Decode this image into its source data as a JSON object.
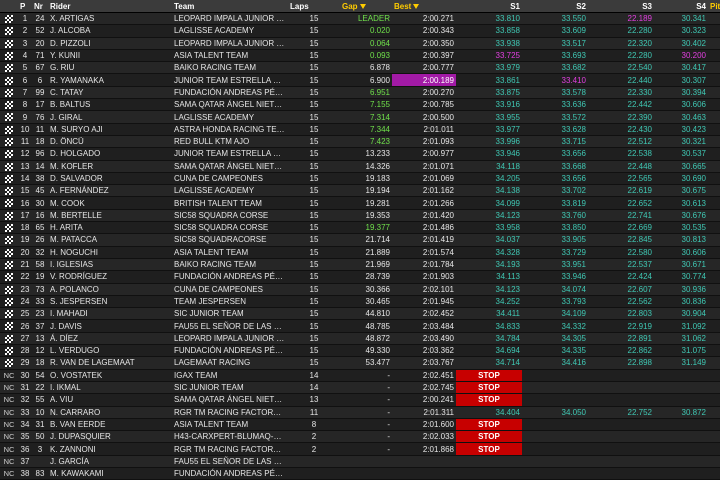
{
  "headers": {
    "flag": "",
    "pos": "P",
    "nr": "Nr",
    "rider": "Rider",
    "team": "Team",
    "laps": "Laps",
    "gap": "Gap",
    "best": "Best",
    "s1": "S1",
    "s2": "S2",
    "s3": "S3",
    "s4": "S4",
    "pits": "Pits"
  },
  "colors": {
    "sector_time": "#3fc8b4",
    "personal_best": "#6fe04a",
    "overall_best": "#e23fe0",
    "stop": "#c70000",
    "header_sorted": "#ffcc00"
  },
  "rows": [
    {
      "flag": "chequered",
      "pos": "1",
      "nr": "24",
      "rider": "X. ARTIGAS",
      "team": "LEOPARD IMPALA JUNIOR TEAM",
      "laps": "15",
      "gap": "LEADER",
      "best": "2:00.271",
      "s1": "33.810",
      "s2": "33.550",
      "s3": "22.189",
      "s4": "30.341",
      "pits": ""
    },
    {
      "flag": "chequered",
      "pos": "2",
      "nr": "52",
      "rider": "J. ALCOBA",
      "team": "LAGLISSE ACADEMY",
      "laps": "15",
      "gap": "0.020",
      "best": "2:00.343",
      "s1": "33.858",
      "s2": "33.609",
      "s3": "22.280",
      "s4": "30.323",
      "pits": ""
    },
    {
      "flag": "chequered",
      "pos": "3",
      "nr": "20",
      "rider": "D. PIZZOLI",
      "team": "LEOPARD IMPALA JUNIOR TEAM",
      "laps": "15",
      "gap": "0.064",
      "best": "2:00.350",
      "s1": "33.938",
      "s2": "33.517",
      "s3": "22.320",
      "s4": "30.402",
      "pits": ""
    },
    {
      "flag": "chequered",
      "pos": "4",
      "nr": "71",
      "rider": "Y. KUNII",
      "team": "ASIA TALENT TEAM",
      "laps": "15",
      "gap": "0.093",
      "best": "2:00.397",
      "s1": "33.725",
      "s2": "33.693",
      "s3": "22.280",
      "s4": "30.200",
      "pits": ""
    },
    {
      "flag": "chequered",
      "pos": "5",
      "nr": "67",
      "rider": "G. RIU",
      "team": "BAIKO RACING TEAM",
      "laps": "15",
      "gap": "6.878",
      "best": "2:00.777",
      "s1": "33.979",
      "s2": "33.682",
      "s3": "22.540",
      "s4": "30.417",
      "pits": ""
    },
    {
      "flag": "chequered",
      "pos": "6",
      "nr": "6",
      "rider": "R. YAMANAKA",
      "team": "JUNIOR TEAM ESTRELLA GALICIA 0,0",
      "laps": "15",
      "gap": "6.900",
      "best": "2:00.189",
      "s1": "33.861",
      "s2": "33.410",
      "s3": "22.440",
      "s4": "30.307",
      "pits": ""
    },
    {
      "flag": "chequered",
      "pos": "7",
      "nr": "99",
      "rider": "C. TATAY",
      "team": "FUNDACIÓN ANDREAS PÉREZ 77",
      "laps": "15",
      "gap": "6.951",
      "best": "2:00.270",
      "s1": "33.875",
      "s2": "33.578",
      "s3": "22.330",
      "s4": "30.394",
      "pits": ""
    },
    {
      "flag": "chequered",
      "pos": "8",
      "nr": "17",
      "rider": "B. BALTUS",
      "team": "SAMA QATAR ÁNGEL NIETO TEAM",
      "laps": "15",
      "gap": "7.155",
      "best": "2:00.785",
      "s1": "33.916",
      "s2": "33.636",
      "s3": "22.442",
      "s4": "30.606",
      "pits": ""
    },
    {
      "flag": "chequered",
      "pos": "9",
      "nr": "76",
      "rider": "J. GIRAL",
      "team": "LAGLISSE ACADEMY",
      "laps": "15",
      "gap": "7.314",
      "best": "2:00.500",
      "s1": "33.955",
      "s2": "33.572",
      "s3": "22.390",
      "s4": "30.463",
      "pits": ""
    },
    {
      "flag": "chequered",
      "pos": "10",
      "nr": "11",
      "rider": "M. SURYO AJI",
      "team": "ASTRA HONDA RACING TEAM",
      "laps": "15",
      "gap": "7.344",
      "best": "2:01.011",
      "s1": "33.977",
      "s2": "33.628",
      "s3": "22.430",
      "s4": "30.423",
      "pits": ""
    },
    {
      "flag": "chequered",
      "pos": "11",
      "nr": "18",
      "rider": "D. ÖNCÜ",
      "team": "RED BULL KTM AJO",
      "laps": "15",
      "gap": "7.423",
      "best": "2:01.093",
      "s1": "33.996",
      "s2": "33.715",
      "s3": "22.512",
      "s4": "30.321",
      "pits": ""
    },
    {
      "flag": "chequered",
      "pos": "12",
      "nr": "96",
      "rider": "D. HOLGADO",
      "team": "JUNIOR TEAM ESTRELLA GALICIA 0,0",
      "laps": "15",
      "gap": "13.233",
      "best": "2:00.977",
      "s1": "33.946",
      "s2": "33.656",
      "s3": "22.538",
      "s4": "30.537",
      "pits": ""
    },
    {
      "flag": "chequered",
      "pos": "13",
      "nr": "14",
      "rider": "M. KOFLER",
      "team": "SAMA QATAR ÁNGEL NIETO TEAM",
      "laps": "15",
      "gap": "14.326",
      "best": "2:01.071",
      "s1": "34.118",
      "s2": "33.668",
      "s3": "22.448",
      "s4": "30.665",
      "pits": ""
    },
    {
      "flag": "chequered",
      "pos": "14",
      "nr": "38",
      "rider": "D. SALVADOR",
      "team": "CUNA DE CAMPEONES",
      "laps": "15",
      "gap": "19.183",
      "best": "2:01.069",
      "s1": "34.205",
      "s2": "33.656",
      "s3": "22.565",
      "s4": "30.690",
      "pits": ""
    },
    {
      "flag": "chequered",
      "pos": "15",
      "nr": "45",
      "rider": "A. FERNÁNDEZ",
      "team": "LAGLISSE ACADEMY",
      "laps": "15",
      "gap": "19.194",
      "best": "2:01.162",
      "s1": "34.138",
      "s2": "33.702",
      "s3": "22.619",
      "s4": "30.675",
      "pits": ""
    },
    {
      "flag": "chequered",
      "pos": "16",
      "nr": "30",
      "rider": "M. COOK",
      "team": "BRITISH TALENT TEAM",
      "laps": "15",
      "gap": "19.281",
      "best": "2:01.266",
      "s1": "34.099",
      "s2": "33.819",
      "s3": "22.652",
      "s4": "30.613",
      "pits": ""
    },
    {
      "flag": "chequered",
      "pos": "17",
      "nr": "16",
      "rider": "M. BERTELLE",
      "team": "SIC58 SQUADRA CORSE",
      "laps": "15",
      "gap": "19.353",
      "best": "2:01.420",
      "s1": "34.123",
      "s2": "33.760",
      "s3": "22.741",
      "s4": "30.676",
      "pits": ""
    },
    {
      "flag": "chequered",
      "pos": "18",
      "nr": "65",
      "rider": "H. ARITA",
      "team": "SIC58 SQUADRA CORSE",
      "laps": "15",
      "gap": "19.377",
      "best": "2:01.486",
      "s1": "33.958",
      "s2": "33.850",
      "s3": "22.669",
      "s4": "30.535",
      "pits": ""
    },
    {
      "flag": "chequered",
      "pos": "19",
      "nr": "26",
      "rider": "M. PATACCA",
      "team": "SIC58 SQUADRACORSE",
      "laps": "15",
      "gap": "21.714",
      "best": "2:01.419",
      "s1": "34.037",
      "s2": "33.905",
      "s3": "22.845",
      "s4": "30.813",
      "pits": ""
    },
    {
      "flag": "chequered",
      "pos": "20",
      "nr": "32",
      "rider": "H. NOGUCHI",
      "team": "ASIA TALENT TEAM",
      "laps": "15",
      "gap": "21.889",
      "best": "2:01.574",
      "s1": "34.328",
      "s2": "33.729",
      "s3": "22.580",
      "s4": "30.606",
      "pits": ""
    },
    {
      "flag": "chequered",
      "pos": "21",
      "nr": "58",
      "rider": "I. IGLESIAS",
      "team": "BAIKO RACING TEAM",
      "laps": "15",
      "gap": "21.969",
      "best": "2:01.784",
      "s1": "34.193",
      "s2": "33.951",
      "s3": "22.537",
      "s4": "30.671",
      "pits": ""
    },
    {
      "flag": "chequered",
      "pos": "22",
      "nr": "19",
      "rider": "V. RODRÍGUEZ",
      "team": "FUNDACIÓN ANDREAS PÉREZ 77",
      "laps": "15",
      "gap": "28.739",
      "best": "2:01.903",
      "s1": "34.113",
      "s2": "33.946",
      "s3": "22.424",
      "s4": "30.774",
      "pits": ""
    },
    {
      "flag": "chequered",
      "pos": "23",
      "nr": "73",
      "rider": "A. POLANCO",
      "team": "CUNA DE CAMPEONES",
      "laps": "15",
      "gap": "30.366",
      "best": "2:02.101",
      "s1": "34.123",
      "s2": "34.074",
      "s3": "22.607",
      "s4": "30.936",
      "pits": ""
    },
    {
      "flag": "chequered",
      "pos": "24",
      "nr": "33",
      "rider": "S. JESPERSEN",
      "team": "TEAM JESPERSEN",
      "laps": "15",
      "gap": "30.465",
      "best": "2:01.945",
      "s1": "34.252",
      "s2": "33.793",
      "s3": "22.562",
      "s4": "30.836",
      "pits": ""
    },
    {
      "flag": "chequered",
      "pos": "25",
      "nr": "23",
      "rider": "I. MAHADI",
      "team": "SIC JUNIOR TEAM",
      "laps": "15",
      "gap": "44.810",
      "best": "2:02.452",
      "s1": "34.411",
      "s2": "34.109",
      "s3": "22.803",
      "s4": "30.904",
      "pits": ""
    },
    {
      "flag": "chequered",
      "pos": "26",
      "nr": "37",
      "rider": "J. DAVIS",
      "team": "FAU55 EL SEÑOR DE LAS BOLSAS",
      "laps": "15",
      "gap": "48.785",
      "best": "2:03.484",
      "s1": "34.833",
      "s2": "34.332",
      "s3": "22.919",
      "s4": "31.092",
      "pits": ""
    },
    {
      "flag": "chequered",
      "pos": "27",
      "nr": "13",
      "rider": "Á. DÍEZ",
      "team": "LEOPARD IMPALA JUNIOR TEAM",
      "laps": "15",
      "gap": "48.872",
      "best": "2:03.490",
      "s1": "34.784",
      "s2": "34.305",
      "s3": "22.891",
      "s4": "31.062",
      "pits": ""
    },
    {
      "flag": "chequered",
      "pos": "28",
      "nr": "12",
      "rider": "L. VERDUGO",
      "team": "FUNDACIÓN ANDREAS PÉREZ 77",
      "laps": "15",
      "gap": "49.330",
      "best": "2:03.362",
      "s1": "34.694",
      "s2": "34.335",
      "s3": "22.862",
      "s4": "31.075",
      "pits": ""
    },
    {
      "flag": "chequered",
      "pos": "29",
      "nr": "18",
      "rider": "R. VAN DE LAGEMAAT",
      "team": "LAGEMAAT RACING",
      "laps": "15",
      "gap": "53.477",
      "best": "2:03.767",
      "s1": "34.714",
      "s2": "34.416",
      "s3": "22.898",
      "s4": "31.149",
      "pits": ""
    },
    {
      "flag": "nc",
      "pos": "30",
      "nr": "54",
      "rider": "O. VOSTATEK",
      "team": "IGAX TEAM",
      "laps": "14",
      "gap": "-",
      "best": "2:02.451",
      "s1": "STOP",
      "s2": "",
      "s3": "",
      "s4": "",
      "pits": ""
    },
    {
      "flag": "nc",
      "pos": "31",
      "nr": "22",
      "rider": "I. IKMAL",
      "team": "SIC JUNIOR TEAM",
      "laps": "14",
      "gap": "-",
      "best": "2:02.745",
      "s1": "STOP",
      "s2": "",
      "s3": "",
      "s4": "",
      "pits": ""
    },
    {
      "flag": "nc",
      "pos": "32",
      "nr": "55",
      "rider": "A. VIU",
      "team": "SAMA QATAR ÁNGEL NIETO TEAM",
      "laps": "13",
      "gap": "-",
      "best": "2:00.241",
      "s1": "STOP",
      "s2": "",
      "s3": "",
      "s4": "",
      "pits": ""
    },
    {
      "flag": "nc",
      "pos": "33",
      "nr": "10",
      "rider": "N. CARRARO",
      "team": "RGR TM RACING FACTORY TEAM",
      "laps": "11",
      "gap": "-",
      "best": "2:01.311",
      "s1": "34.404",
      "s2": "34.050",
      "s3": "22.752",
      "s4": "30.872",
      "pits": "1"
    },
    {
      "flag": "nc",
      "pos": "34",
      "nr": "31",
      "rider": "B. VAN EERDE",
      "team": "ASIA TALENT TEAM",
      "laps": "8",
      "gap": "-",
      "best": "2:01.600",
      "s1": "STOP",
      "s2": "",
      "s3": "",
      "s4": "",
      "pits": ""
    },
    {
      "flag": "nc",
      "pos": "35",
      "nr": "50",
      "rider": "J. DUPASQUIER",
      "team": "H43-CARXPERT-BLUMAQ-KTM",
      "laps": "2",
      "gap": "-",
      "best": "2:02.033",
      "s1": "STOP",
      "s2": "",
      "s3": "",
      "s4": "",
      "pits": ""
    },
    {
      "flag": "nc",
      "pos": "36",
      "nr": "3",
      "rider": "K. ZANNONI",
      "team": "RGR TM RACING FACTORY TEAM",
      "laps": "2",
      "gap": "-",
      "best": "2:01.868",
      "s1": "STOP",
      "s2": "",
      "s3": "",
      "s4": "",
      "pits": ""
    },
    {
      "flag": "nc",
      "pos": "37",
      "nr": "",
      "rider": "J. GARCÍA",
      "team": "FAU55 EL SEÑOR DE LAS BOLSAS",
      "laps": "",
      "gap": "",
      "best": "",
      "s1": "",
      "s2": "",
      "s3": "",
      "s4": "",
      "pits": ""
    },
    {
      "flag": "nc",
      "pos": "38",
      "nr": "83",
      "rider": "M. KAWAKAMI",
      "team": "FUNDACIÓN ANDREAS PÉREZ 77",
      "laps": "",
      "gap": "",
      "best": "",
      "s1": "",
      "s2": "",
      "s3": "",
      "s4": "",
      "pits": ""
    }
  ]
}
